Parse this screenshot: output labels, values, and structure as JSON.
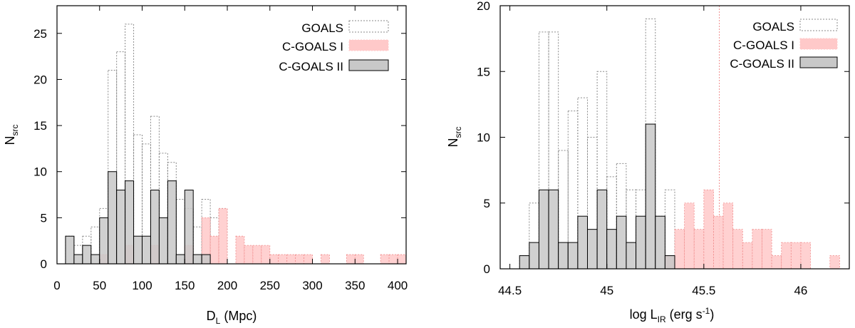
{
  "colors": {
    "goals": "#8a8a8a",
    "cgoals1_fill": "#ffc9c9",
    "cgoals1_stroke": "#f08c8c",
    "cgoals2_fill": "#c8c8c8",
    "cgoals2_stroke": "#000000",
    "vline": "#f08c8c"
  },
  "chart_data": [
    {
      "type": "bar",
      "subtype": "histogram",
      "xlabel_main": "D",
      "xlabel_sub": "L",
      "xlabel_tail": " (Mpc)",
      "ylabel_main": "N",
      "ylabel_sub": "src",
      "xlim": [
        0,
        410
      ],
      "ylim": [
        0,
        28
      ],
      "xticks": [
        0,
        50,
        100,
        150,
        200,
        250,
        300,
        350,
        400
      ],
      "yticks": [
        0,
        5,
        10,
        15,
        20,
        25
      ],
      "grid": false,
      "legend_position": "top-right",
      "bin_width": 10,
      "series": [
        {
          "name": "GOALS",
          "style": "dotted",
          "bins": [
            [
              10,
              20,
              3
            ],
            [
              20,
              30,
              2
            ],
            [
              30,
              40,
              3
            ],
            [
              40,
              50,
              4
            ],
            [
              50,
              60,
              6
            ],
            [
              60,
              70,
              21
            ],
            [
              70,
              80,
              23
            ],
            [
              80,
              90,
              26
            ],
            [
              90,
              100,
              14
            ],
            [
              100,
              110,
              13
            ],
            [
              110,
              120,
              16
            ],
            [
              120,
              130,
              12
            ],
            [
              130,
              140,
              11
            ],
            [
              140,
              150,
              7
            ],
            [
              150,
              160,
              6
            ],
            [
              160,
              170,
              4
            ],
            [
              170,
              180,
              7
            ],
            [
              180,
              190,
              5
            ],
            [
              190,
              200,
              6
            ]
          ]
        },
        {
          "name": "C-GOALS I",
          "style": "pink",
          "bins": [
            [
              50,
              60,
              1
            ],
            [
              80,
              90,
              2
            ],
            [
              110,
              120,
              2
            ],
            [
              150,
              160,
              2
            ],
            [
              170,
              180,
              5
            ],
            [
              180,
              190,
              3
            ],
            [
              190,
              200,
              6
            ],
            [
              210,
              220,
              3
            ],
            [
              220,
              230,
              2
            ],
            [
              230,
              240,
              2
            ],
            [
              240,
              250,
              2
            ],
            [
              250,
              260,
              1
            ],
            [
              260,
              270,
              1
            ],
            [
              270,
              280,
              1
            ],
            [
              280,
              290,
              1
            ],
            [
              290,
              300,
              1
            ],
            [
              310,
              320,
              1
            ],
            [
              340,
              350,
              1
            ],
            [
              350,
              360,
              1
            ],
            [
              380,
              390,
              1
            ],
            [
              390,
              400,
              1
            ],
            [
              400,
              410,
              1
            ]
          ]
        },
        {
          "name": "C-GOALS II",
          "style": "solid",
          "bins": [
            [
              10,
              20,
              3
            ],
            [
              20,
              30,
              1
            ],
            [
              30,
              40,
              2
            ],
            [
              40,
              50,
              1
            ],
            [
              50,
              60,
              5
            ],
            [
              60,
              70,
              10
            ],
            [
              70,
              80,
              8
            ],
            [
              80,
              90,
              9
            ],
            [
              90,
              100,
              3
            ],
            [
              100,
              110,
              3
            ],
            [
              110,
              120,
              8
            ],
            [
              120,
              130,
              5
            ],
            [
              130,
              140,
              9
            ],
            [
              140,
              150,
              1
            ],
            [
              150,
              160,
              8
            ],
            [
              160,
              170,
              1
            ],
            [
              170,
              180,
              1
            ]
          ]
        }
      ]
    },
    {
      "type": "bar",
      "subtype": "histogram",
      "xlabel_main": "log L",
      "xlabel_sub": "IR",
      "xlabel_tail": " (erg s",
      "xlabel_sup": "-1",
      "xlabel_end": ")",
      "ylabel_main": "N",
      "ylabel_sub": "src",
      "xlim": [
        44.45,
        46.25
      ],
      "ylim": [
        0,
        20
      ],
      "xticks": [
        44.5,
        45,
        45.5,
        46
      ],
      "xtick_labels": [
        "44.5",
        "45",
        "45.5",
        "46"
      ],
      "yticks": [
        0,
        5,
        10,
        15,
        20
      ],
      "grid": false,
      "legend_position": "top-right",
      "bin_width": 0.05,
      "vline_x": 45.58,
      "series": [
        {
          "name": "GOALS",
          "style": "dotted",
          "bins": [
            [
              44.55,
              44.6,
              1
            ],
            [
              44.6,
              44.65,
              5
            ],
            [
              44.65,
              44.7,
              18
            ],
            [
              44.7,
              44.75,
              18
            ],
            [
              44.75,
              44.8,
              9
            ],
            [
              44.8,
              44.85,
              12
            ],
            [
              44.85,
              44.9,
              13
            ],
            [
              44.9,
              44.95,
              10
            ],
            [
              44.95,
              45.0,
              15
            ],
            [
              45.0,
              45.05,
              7
            ],
            [
              45.05,
              45.1,
              8
            ],
            [
              45.1,
              45.15,
              6
            ],
            [
              45.15,
              45.2,
              6
            ],
            [
              45.2,
              45.25,
              19
            ],
            [
              45.25,
              45.3,
              4
            ],
            [
              45.3,
              45.35,
              6
            ]
          ]
        },
        {
          "name": "C-GOALS I",
          "style": "pink",
          "bins": [
            [
              45.3,
              45.35,
              1
            ],
            [
              45.35,
              45.4,
              3
            ],
            [
              45.4,
              45.45,
              5
            ],
            [
              45.45,
              45.5,
              3
            ],
            [
              45.5,
              45.55,
              6
            ],
            [
              45.55,
              45.6,
              4
            ],
            [
              45.6,
              45.65,
              5
            ],
            [
              45.65,
              45.7,
              3
            ],
            [
              45.7,
              45.75,
              2
            ],
            [
              45.75,
              45.8,
              3
            ],
            [
              45.8,
              45.85,
              3
            ],
            [
              45.85,
              45.9,
              1
            ],
            [
              45.9,
              45.95,
              2
            ],
            [
              45.95,
              46.0,
              2
            ],
            [
              46.0,
              46.05,
              2
            ],
            [
              46.15,
              46.2,
              1
            ]
          ]
        },
        {
          "name": "C-GOALS II",
          "style": "solid",
          "bins": [
            [
              44.55,
              44.6,
              1
            ],
            [
              44.6,
              44.65,
              2
            ],
            [
              44.65,
              44.7,
              6
            ],
            [
              44.7,
              44.75,
              6
            ],
            [
              44.75,
              44.8,
              2
            ],
            [
              44.8,
              44.85,
              2
            ],
            [
              44.85,
              44.9,
              4
            ],
            [
              44.9,
              44.95,
              3
            ],
            [
              44.95,
              45.0,
              6
            ],
            [
              45.0,
              45.05,
              3
            ],
            [
              45.05,
              45.1,
              4
            ],
            [
              45.1,
              45.15,
              2
            ],
            [
              45.15,
              45.2,
              4
            ],
            [
              45.2,
              45.25,
              11
            ],
            [
              45.25,
              45.3,
              4
            ],
            [
              45.3,
              45.35,
              1
            ]
          ]
        }
      ]
    }
  ]
}
